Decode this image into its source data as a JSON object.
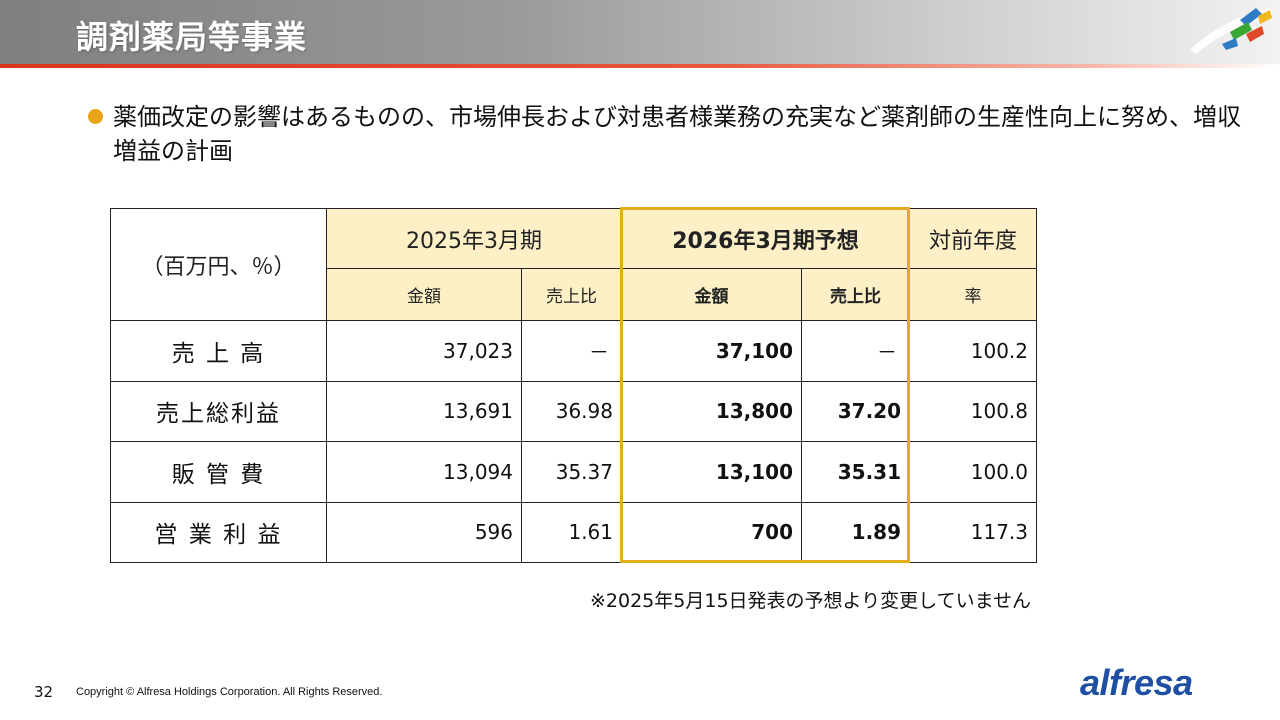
{
  "slide": {
    "title": "調剤薬局等事業",
    "bullet": "薬価改定の影響はあるものの、市場伸長および対患者様業務の充実など薬剤師の生産性向上に努め、増収増益の計画",
    "accent_color": "#e8a317",
    "highlight_color": "#e2ad1c"
  },
  "table": {
    "unit_label": "（百万円、％）",
    "period_prev": "2025年3月期",
    "period_forecast": "2026年3月期予想",
    "yoy_header": "対前年度",
    "sub_amount": "金額",
    "sub_ratio": "売上比",
    "sub_rate": "率",
    "rows": [
      {
        "label": "売 上 高",
        "prev_amount": "37,023",
        "prev_ratio": "－",
        "fc_amount": "37,100",
        "fc_ratio": "－",
        "rate": "100.2"
      },
      {
        "label": "売上総利益",
        "prev_amount": "13,691",
        "prev_ratio": "36.98",
        "fc_amount": "13,800",
        "fc_ratio": "37.20",
        "rate": "100.8"
      },
      {
        "label": "販 管 費",
        "prev_amount": "13,094",
        "prev_ratio": "35.37",
        "fc_amount": "13,100",
        "fc_ratio": "35.31",
        "rate": "100.0"
      },
      {
        "label": "営 業 利 益",
        "prev_amount": "596",
        "prev_ratio": "1.61",
        "fc_amount": "700",
        "fc_ratio": "1.89",
        "rate": "117.3"
      }
    ]
  },
  "note": "※2025年5月15日発表の予想より変更していません",
  "footer": {
    "page_number": "32",
    "copyright": "Copyright © Alfresa Holdings Corporation. All Rights Reserved.",
    "logo_text": "alfresa"
  }
}
